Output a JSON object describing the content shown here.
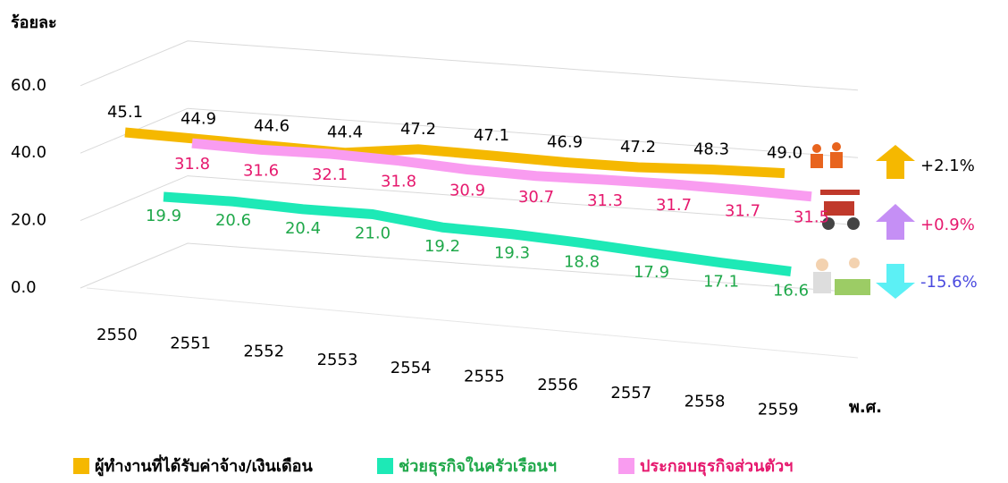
{
  "chart_data": {
    "type": "line",
    "y_label": "ร้อยละ",
    "x_label": "พ.ศ.",
    "categories": [
      "2550",
      "2551",
      "2552",
      "2553",
      "2554",
      "2555",
      "2556",
      "2557",
      "2558",
      "2559"
    ],
    "ylim": [
      0,
      60
    ],
    "yticks": [
      {
        "value": 0,
        "label": "0.0"
      },
      {
        "value": 20,
        "label": "20.0"
      },
      {
        "value": 40,
        "label": "40.0"
      },
      {
        "value": 60,
        "label": "60.0"
      }
    ],
    "grid": true,
    "series": [
      {
        "name": "ผู้ทำงานที่ได้รับค่าจ้าง/เงินเดือน",
        "color": "#f5b800",
        "label_color": "#000000",
        "values": [
          45.1,
          44.9,
          44.6,
          44.4,
          47.2,
          47.1,
          46.9,
          47.2,
          48.3,
          49.0
        ],
        "value_labels": [
          "45.1",
          "44.9",
          "44.6",
          "44.4",
          "47.2",
          "47.1",
          "46.9",
          "47.2",
          "48.3",
          "49.0"
        ]
      },
      {
        "name": "ช่วยธุรกิจในครัวเรือนฯ",
        "color": "#1de9b6",
        "label_color": "#1fa84a",
        "values": [
          19.9,
          20.6,
          20.4,
          21.0,
          19.2,
          19.3,
          18.8,
          17.9,
          17.1,
          16.6
        ],
        "value_labels": [
          "19.9",
          "20.6",
          "20.4",
          "21.0",
          "19.2",
          "19.3",
          "18.8",
          "17.9",
          "17.1",
          "16.6"
        ]
      },
      {
        "name": "ประกอบธุรกิจส่วนตัวฯ",
        "color": "#f99cf0",
        "label_color": "#e6196e",
        "values": [
          31.8,
          31.6,
          32.1,
          31.8,
          30.9,
          30.7,
          31.3,
          31.7,
          31.7,
          31.5
        ],
        "value_labels": [
          "31.8",
          "31.6",
          "32.1",
          "31.8",
          "30.9",
          "30.7",
          "31.3",
          "31.7",
          "31.7",
          "31.5"
        ]
      }
    ],
    "annotations": [
      {
        "text": "+2.1%",
        "color": "#000000"
      },
      {
        "text": "-15.6%",
        "color": "#4a4adf"
      },
      {
        "text": "+0.9%",
        "color": "#e6196e"
      }
    ]
  }
}
